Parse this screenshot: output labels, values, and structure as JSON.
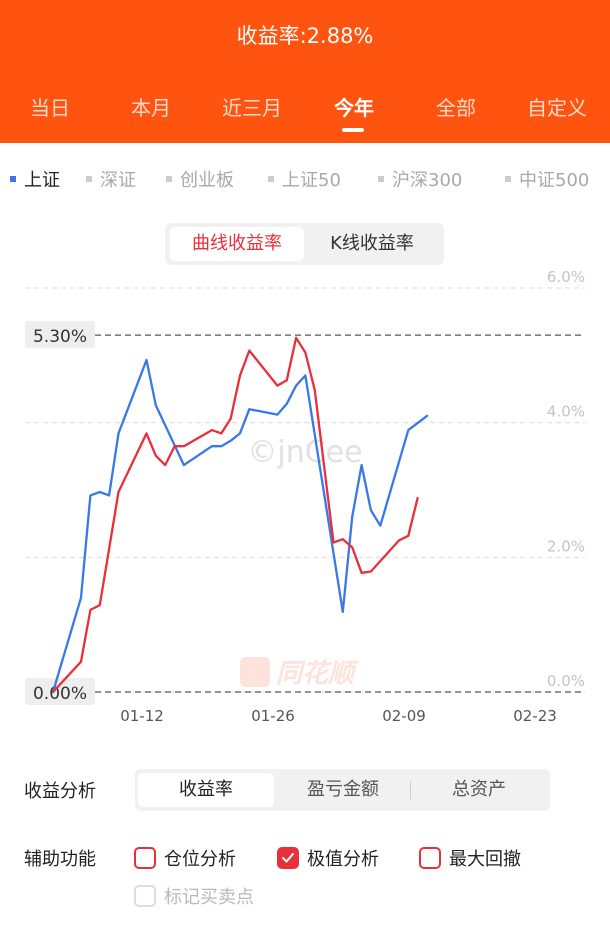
{
  "header": {
    "title": "收益率:2.88%",
    "tabs": [
      "当日",
      "本月",
      "近三月",
      "今年",
      "全部",
      "自定义"
    ],
    "active_tab": "今年"
  },
  "indices": [
    "上证",
    "深证",
    "创业板",
    "上证50",
    "沪深300",
    "中证500"
  ],
  "active_index": "上证",
  "chart_toggle": {
    "curve": "曲线收益率",
    "kline": "K线收益率"
  },
  "watermark": {
    "text": "©jnCee",
    "logo_text": "同花顺"
  },
  "chart_data": {
    "type": "line",
    "title": "",
    "xlabel": "",
    "ylabel": "",
    "x_ticks": [
      "01-12",
      "01-26",
      "02-09",
      "02-23"
    ],
    "y_ticks": [
      "6.0%",
      "4.0%",
      "2.0%",
      "0.0%"
    ],
    "ylim": [
      0,
      6.0
    ],
    "highlight_labels": {
      "max": "5.30%",
      "min": "0.00%"
    },
    "highlight_values": [
      5.3,
      0.0
    ],
    "grid": true,
    "legend": "none",
    "series": [
      {
        "color": "#3a78e8",
        "points": [
          [
            0,
            0.0
          ],
          [
            3,
            1.4
          ],
          [
            4,
            2.92
          ],
          [
            5,
            2.97
          ],
          [
            6,
            2.92
          ],
          [
            7,
            3.84
          ],
          [
            10,
            4.93
          ],
          [
            11,
            4.26
          ],
          [
            14,
            3.37
          ],
          [
            17,
            3.65
          ],
          [
            18,
            3.65
          ],
          [
            19,
            3.73
          ],
          [
            20,
            3.84
          ],
          [
            21,
            4.2
          ],
          [
            24,
            4.12
          ],
          [
            25,
            4.28
          ],
          [
            26,
            4.55
          ],
          [
            27,
            4.7
          ],
          [
            31,
            1.19
          ],
          [
            32,
            2.6
          ],
          [
            33,
            3.37
          ],
          [
            34,
            2.7
          ],
          [
            35,
            2.47
          ],
          [
            38,
            3.89
          ],
          [
            40,
            4.1
          ]
        ]
      },
      {
        "color": "#e8303a",
        "points": [
          [
            0,
            0.0
          ],
          [
            3,
            0.45
          ],
          [
            4,
            1.22
          ],
          [
            5,
            1.29
          ],
          [
            7,
            2.97
          ],
          [
            10,
            3.84
          ],
          [
            11,
            3.51
          ],
          [
            12,
            3.37
          ],
          [
            13,
            3.65
          ],
          [
            14,
            3.65
          ],
          [
            17,
            3.89
          ],
          [
            18,
            3.84
          ],
          [
            19,
            4.06
          ],
          [
            20,
            4.7
          ],
          [
            21,
            5.07
          ],
          [
            24,
            4.55
          ],
          [
            25,
            4.63
          ],
          [
            26,
            5.26
          ],
          [
            27,
            5.04
          ],
          [
            28,
            4.48
          ],
          [
            30,
            2.22
          ],
          [
            31,
            2.27
          ],
          [
            32,
            2.15
          ],
          [
            33,
            1.77
          ],
          [
            34,
            1.79
          ],
          [
            37,
            2.25
          ],
          [
            38,
            2.32
          ],
          [
            39,
            2.88
          ]
        ]
      }
    ]
  },
  "analysis": {
    "label": "收益分析",
    "options": [
      "收益率",
      "盈亏金额",
      "总资产"
    ],
    "active": "收益率"
  },
  "assist": {
    "label": "辅助功能",
    "options": [
      {
        "label": "仓位分析",
        "checked": false,
        "disabled": false
      },
      {
        "label": "极值分析",
        "checked": true,
        "disabled": false
      },
      {
        "label": "最大回撤",
        "checked": false,
        "disabled": false
      },
      {
        "label": "标记买卖点",
        "checked": false,
        "disabled": true
      }
    ]
  },
  "colors": {
    "header_bg": "#fe5410",
    "accent_red": "#e8303a",
    "accent_blue": "#3a78e8"
  }
}
